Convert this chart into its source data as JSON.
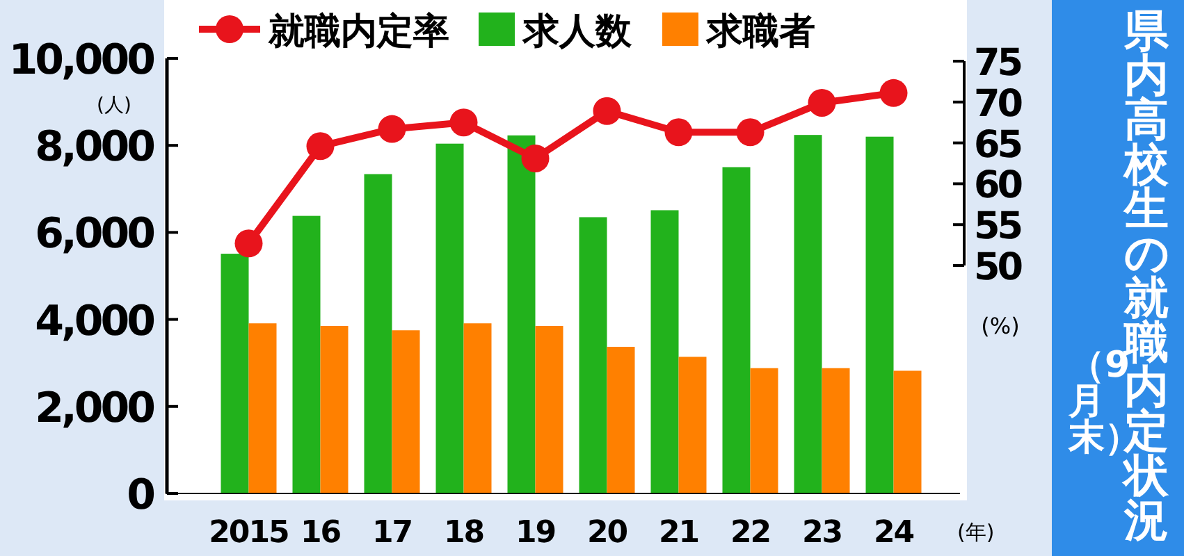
{
  "chart_data": {
    "type": "bar",
    "title": "県内高校生の就職内定状況",
    "subtitle": "（9月末）",
    "xlabel": "(年)",
    "ylabel": "(人)",
    "y2label": "(%)",
    "categories": [
      "2015",
      "16",
      "17",
      "18",
      "19",
      "20",
      "21",
      "22",
      "23",
      "24"
    ],
    "series": [
      {
        "name": "就職内定率",
        "type": "line",
        "axis": "y2",
        "color": "#e8141c",
        "values": [
          52.7,
          64.6,
          66.7,
          67.5,
          63.1,
          68.9,
          66.3,
          66.3,
          69.9,
          71.1
        ]
      },
      {
        "name": "求人数",
        "color": "#22b21c",
        "values": [
          5510,
          6380,
          7340,
          8040,
          8230,
          6350,
          6510,
          7500,
          8240,
          8200
        ]
      },
      {
        "name": "求職者",
        "color": "#ff8000",
        "values": [
          3910,
          3850,
          3750,
          3910,
          3850,
          3370,
          3140,
          2880,
          2880,
          2820
        ]
      }
    ],
    "ylim": [
      0,
      10000
    ],
    "yticks": [
      {
        "value": 0,
        "label": "0"
      },
      {
        "value": 2000,
        "label": "2,000"
      },
      {
        "value": 4000,
        "label": "4,000"
      },
      {
        "value": 6000,
        "label": "6,000"
      },
      {
        "value": 8000,
        "label": "8,000"
      },
      {
        "value": 10000,
        "label": "10,000"
      }
    ],
    "y2lim": [
      50,
      75
    ],
    "y2ticks": [
      50,
      55,
      60,
      65,
      70,
      75
    ],
    "marker": "circle",
    "legend": "top",
    "grid": false
  }
}
